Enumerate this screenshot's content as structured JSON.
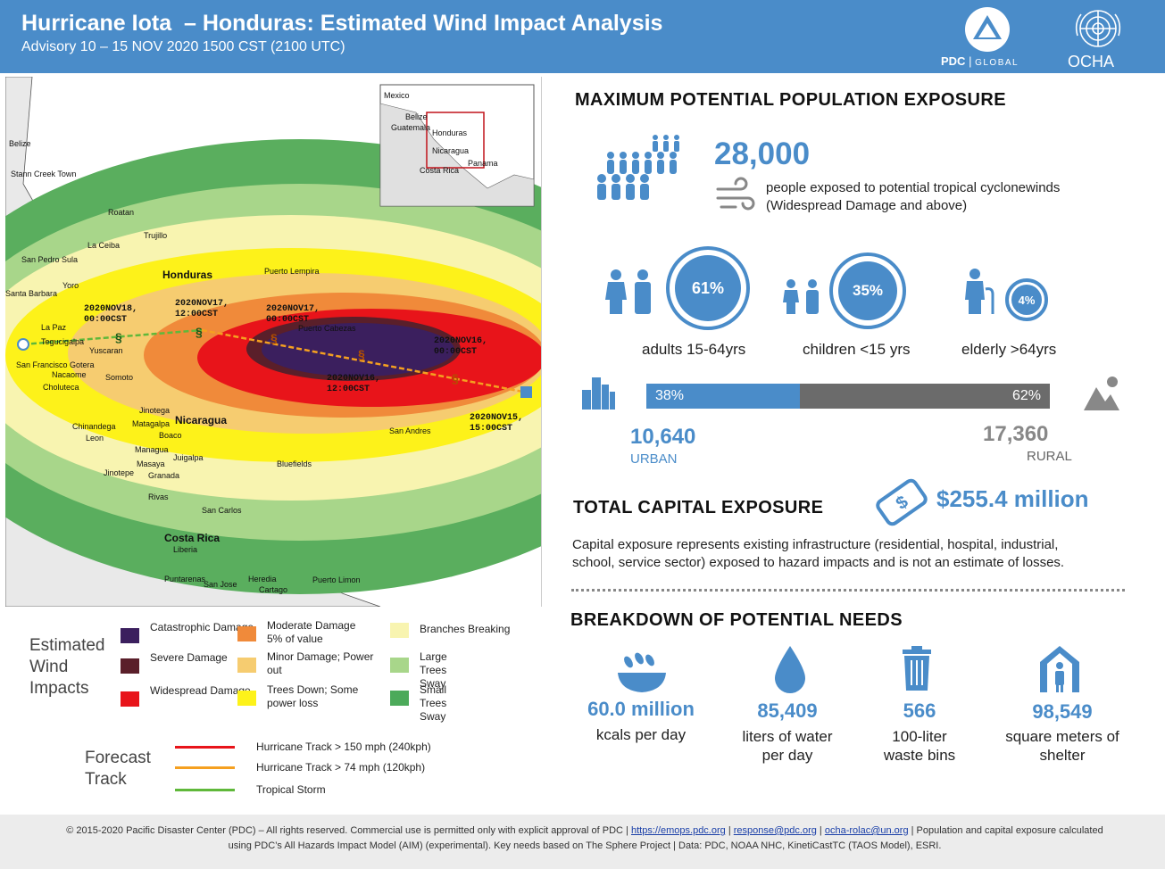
{
  "header": {
    "title": "Hurricane Iota  – Honduras: Estimated Wind Impact Analysis",
    "subtitle": "Advisory 10 – 15 NOV 2020 1500 CST (2100 UTC)",
    "pdc_logo_text": "PDC",
    "pdc_logo_sub": "GLOBAL",
    "ocha_logo_text": "OCHA",
    "brand_color": "#4a8cc9"
  },
  "map": {
    "place_labels": [
      "Belize",
      "Stann Creek Town",
      "Roatan",
      "Trujillo",
      "La Ceiba",
      "San Pedro Sula",
      "Yoro",
      "Santa Barbara",
      "Honduras",
      "Puerto Lempira",
      "La Paz",
      "Tegucigalpa",
      "Yuscaran",
      "San Francisco Gotera",
      "Nacaome",
      "Choluteca",
      "Somoto",
      "Puerto Cabezas",
      "Nicaragua",
      "Jinotega",
      "Matagalpa",
      "Chinandega",
      "Leon",
      "Boaco",
      "Juigalpa",
      "Managua",
      "Masaya",
      "Jinotepe",
      "Granada",
      "Rivas",
      "Bluefields",
      "San Andres",
      "San Carlos",
      "Costa Rica",
      "Liberia",
      "Puntarenas",
      "San Jose",
      "Heredia",
      "Cartago",
      "Puerto Limon"
    ],
    "forecast_labels": [
      {
        "line1": "2020NOV18,",
        "line2": "00:00CST"
      },
      {
        "line1": "2020NOV17,",
        "line2": "12:00CST"
      },
      {
        "line1": "2020NOV17,",
        "line2": "00:00CST"
      },
      {
        "line1": "2020NOV16,",
        "line2": "00:00CST"
      },
      {
        "line1": "2020NOV16,",
        "line2": "12:00CST"
      },
      {
        "line1": "2020NOV15,",
        "line2": "15:00CST"
      }
    ],
    "inset_labels": [
      "Mexico",
      "Belize",
      "Honduras",
      "Guatemala",
      "Nicaragua",
      "Costa Rica",
      "Panama"
    ]
  },
  "legend": {
    "title": "Estimated Wind Impacts",
    "items": [
      {
        "label": "Catastrophic Damage",
        "color": "#3b1f5e"
      },
      {
        "label": "Severe Damage",
        "color": "#5a1f2a"
      },
      {
        "label": "Widespread Damage",
        "color": "#e8141a"
      },
      {
        "label": "Moderate Damage 5% of value",
        "color": "#f08a3a"
      },
      {
        "label": "Minor Damage; Power out",
        "color": "#f6cc70"
      },
      {
        "label": "Trees Down; Some power loss",
        "color": "#fdf21a"
      },
      {
        "label": "Branches Breaking",
        "color": "#f8f4b0"
      },
      {
        "label": "Large Trees Sway",
        "color": "#a8d68a"
      },
      {
        "label": "Small Trees Sway",
        "color": "#4caa5a"
      }
    ],
    "forecast_title": "Forecast Track",
    "tracks": [
      {
        "label": "Hurricane Track > 150 mph (240kph)",
        "color": "#e8141a"
      },
      {
        "label": "Hurricane Track > 74 mph (120kph)",
        "color": "#f5a020"
      },
      {
        "label": "Tropical Storm",
        "color": "#5fb83a"
      }
    ]
  },
  "exposure": {
    "title": "MAXIMUM POTENTIAL POPULATION EXPOSURE",
    "people": "28,000",
    "people_desc_1": "people exposed to potential tropical cyclonewinds",
    "people_desc_2": "(Widespread Damage and above)",
    "age_groups": [
      {
        "pct": "61%",
        "label": "adults 15-64yrs",
        "value": 0.61
      },
      {
        "pct": "35%",
        "label": "children <15 yrs",
        "value": 0.35
      },
      {
        "pct": "4%",
        "label": "elderly >64yrs",
        "value": 0.04
      }
    ],
    "urban_pct": "38%",
    "rural_pct": "62%",
    "urban_fraction": 0.38,
    "urban_count": "10,640",
    "urban_label": "URBAN",
    "rural_count": "17,360",
    "rural_label": "RURAL"
  },
  "capital": {
    "title": "TOTAL CAPITAL EXPOSURE",
    "value": "$255.4 million",
    "desc_1": "Capital exposure represents existing infrastructure (residential, hospital, industrial,",
    "desc_2": "school, service sector) exposed to hazard impacts and is not an estimate of losses."
  },
  "needs": {
    "title": "BREAKDOWN OF POTENTIAL NEEDS",
    "items": [
      {
        "num": "60.0 million",
        "label_1": "kcals per day",
        "label_2": ""
      },
      {
        "num": "85,409",
        "label_1": "liters of water",
        "label_2": "per day"
      },
      {
        "num": "566",
        "label_1": "100-liter",
        "label_2": "waste bins"
      },
      {
        "num": "98,549",
        "label_1": "square meters of",
        "label_2": "shelter"
      }
    ]
  },
  "footer": {
    "part1": "© 2015-2020 Pacific Disaster Center (PDC) – All rights reserved. Commercial use is permitted only with explicit approval of PDC",
    "link1": "https://emops.pdc.org",
    "link2": "response@pdc.org",
    "link3": "ocha-rolac@un.org",
    "part2": "Population",
    "part3": "and capital exposure calculated using PDC’s All Hazards Impact Model (AIM) (experimental). Key needs based on The Sphere Project",
    "part4": "Data: PDC, NOAA NHC, KinetiCastTC (TAOS Model), ESRI."
  }
}
